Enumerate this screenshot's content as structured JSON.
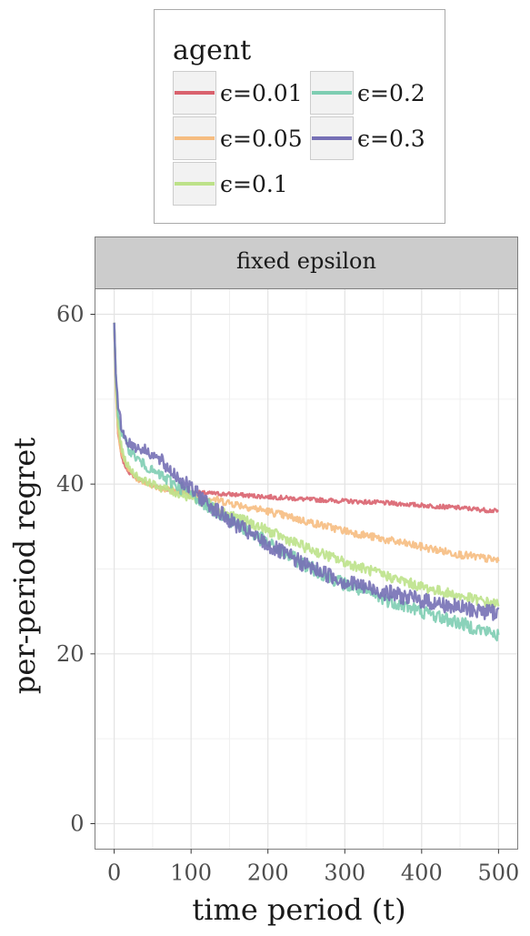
{
  "legend": {
    "title": "agent",
    "entries": [
      {
        "label": "ϵ=0.01",
        "color": "#d9626e"
      },
      {
        "label": "ϵ=0.05",
        "color": "#f6bd81"
      },
      {
        "label": "ϵ=0.1",
        "color": "#bde289"
      },
      {
        "label": "ϵ=0.2",
        "color": "#7ecdb2"
      },
      {
        "label": "ϵ=0.3",
        "color": "#7670b5"
      }
    ]
  },
  "chart_data": {
    "type": "line",
    "facet_label": "fixed epsilon",
    "xlabel": "time period (t)",
    "ylabel": "per-period regret",
    "xlim": [
      -25,
      525
    ],
    "ylim": [
      -3,
      63
    ],
    "xticks": [
      0,
      100,
      200,
      300,
      400,
      500
    ],
    "yticks": [
      0,
      20,
      40,
      60
    ],
    "grid": true,
    "legend_position": "top",
    "series": [
      {
        "name": "ϵ=0.01",
        "color": "#d9626e",
        "x": [
          0,
          2,
          5,
          10,
          15,
          20,
          30,
          40,
          50,
          75,
          100,
          125,
          150,
          200,
          250,
          300,
          350,
          400,
          450,
          500
        ],
        "y": [
          59,
          52,
          46,
          43,
          42,
          41.3,
          40.6,
          40.2,
          39.8,
          39.3,
          39.0,
          38.9,
          38.8,
          38.5,
          38.2,
          38.0,
          37.8,
          37.5,
          37.2,
          36.8
        ]
      },
      {
        "name": "ϵ=0.05",
        "color": "#f6bd81",
        "x": [
          0,
          2,
          5,
          10,
          15,
          20,
          30,
          40,
          50,
          75,
          100,
          125,
          150,
          200,
          250,
          300,
          350,
          400,
          450,
          500
        ],
        "y": [
          59,
          51,
          46,
          43.5,
          42.3,
          41.5,
          40.6,
          40.2,
          39.8,
          39.2,
          38.8,
          38.3,
          37.8,
          36.8,
          35.6,
          34.5,
          33.5,
          32.6,
          31.7,
          31.0
        ]
      },
      {
        "name": "ϵ=0.1",
        "color": "#bde289",
        "x": [
          0,
          2,
          5,
          10,
          15,
          20,
          30,
          40,
          50,
          75,
          100,
          125,
          150,
          200,
          250,
          300,
          350,
          400,
          450,
          500
        ],
        "y": [
          59,
          52,
          47,
          44,
          42.6,
          41.8,
          40.9,
          40.4,
          40.0,
          39.2,
          38.5,
          37.5,
          36.5,
          34.5,
          32.5,
          30.8,
          29.3,
          27.9,
          26.8,
          25.8
        ]
      },
      {
        "name": "ϵ=0.2",
        "color": "#7ecdb2",
        "x": [
          0,
          2,
          5,
          10,
          15,
          20,
          30,
          40,
          50,
          75,
          100,
          125,
          150,
          200,
          250,
          300,
          350,
          400,
          450,
          500
        ],
        "y": [
          59,
          53,
          48.5,
          46,
          44.8,
          44,
          43,
          42.2,
          41.5,
          40.2,
          38.9,
          37.3,
          35.8,
          33.0,
          30.4,
          28.2,
          26.5,
          25.0,
          23.6,
          22.2
        ]
      },
      {
        "name": "ϵ=0.3",
        "color": "#7670b5",
        "x": [
          0,
          2,
          5,
          10,
          15,
          20,
          30,
          40,
          50,
          75,
          100,
          125,
          150,
          200,
          250,
          300,
          350,
          400,
          450,
          500
        ],
        "y": [
          59,
          53,
          49,
          46.5,
          45.3,
          44.8,
          44.3,
          44.0,
          43.5,
          41.5,
          39.4,
          37.5,
          35.7,
          32.8,
          30.4,
          28.5,
          27.3,
          26.3,
          25.4,
          24.8
        ]
      }
    ]
  }
}
